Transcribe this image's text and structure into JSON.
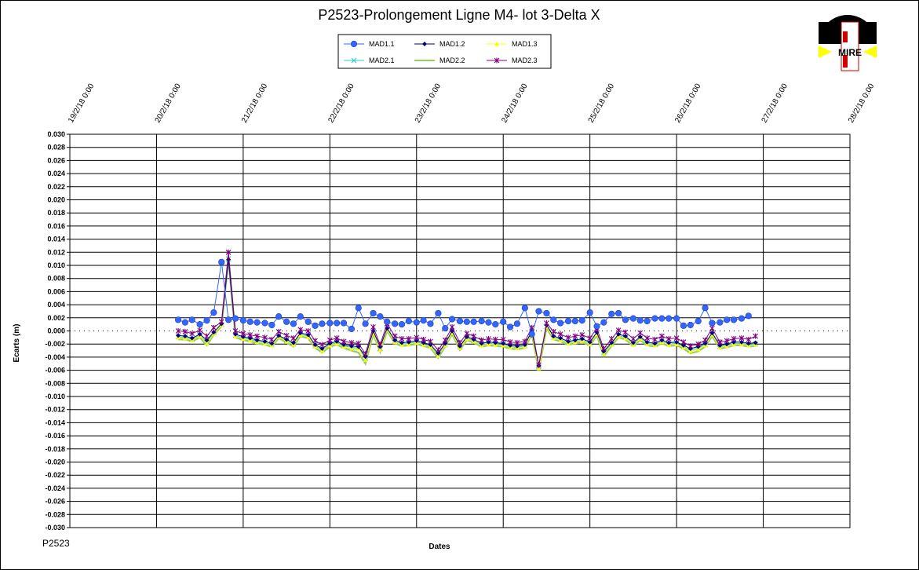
{
  "chart_data": {
    "type": "line",
    "title": "P2523-Prolongement  Ligne  M4- lot 3-Delta X",
    "xlabel": "Dates",
    "ylabel": "Ecarts (m)",
    "footer_label": "P2523",
    "logo_text": "MIRE",
    "ylim": [
      -0.03,
      0.03
    ],
    "ystep": 0.002,
    "grid": true,
    "legend_position": "top-center",
    "x_ticks": [
      "19/2/18 0:00",
      "20/2/18 0:00",
      "21/2/18 0:00",
      "22/2/18 0:00",
      "23/2/18 0:00",
      "24/2/18 0:00",
      "25/2/18 0:00",
      "26/2/18 0:00",
      "27/2/18 0:00",
      "28/2/18 0:00"
    ],
    "x": [
      1.25,
      1.33,
      1.41,
      1.5,
      1.58,
      1.66,
      1.75,
      1.83,
      1.91,
      2.0,
      2.08,
      2.16,
      2.25,
      2.33,
      2.41,
      2.5,
      2.58,
      2.66,
      2.75,
      2.83,
      2.91,
      3.0,
      3.08,
      3.16,
      3.25,
      3.33,
      3.41,
      3.5,
      3.58,
      3.66,
      3.75,
      3.83,
      3.91,
      4.0,
      4.08,
      4.16,
      4.25,
      4.33,
      4.41,
      4.5,
      4.58,
      4.66,
      4.75,
      4.83,
      4.91,
      5.0,
      5.08,
      5.16,
      5.25,
      5.33,
      5.41,
      5.5,
      5.58,
      5.66,
      5.75,
      5.83,
      5.91,
      6.0,
      6.08,
      6.16,
      6.25,
      6.33,
      6.41,
      6.5,
      6.58,
      6.66,
      6.75,
      6.83,
      6.91,
      7.0,
      7.08,
      7.16,
      7.25,
      7.33,
      7.41,
      7.5,
      7.58,
      7.66,
      7.75,
      7.83,
      7.91,
      8.0,
      8.08
    ],
    "series": [
      {
        "name": "MAD1.1",
        "color": "#3366ff",
        "marker": "circle",
        "values": [
          0.0017,
          0.0013,
          0.0017,
          0.001,
          0.0016,
          0.0028,
          0.0105,
          0.0017,
          0.0019,
          0.0016,
          0.0014,
          0.0013,
          0.0012,
          0.0009,
          0.0022,
          0.0014,
          0.0011,
          0.0022,
          0.0014,
          0.0008,
          0.0011,
          0.0012,
          0.0012,
          0.0012,
          0.0003,
          0.0035,
          0.0011,
          0.0027,
          0.0022,
          0.0014,
          0.0011,
          0.001,
          0.0015,
          0.0013,
          0.0016,
          0.0011,
          0.0027,
          0.0004,
          0.0018,
          0.0015,
          0.0014,
          0.0014,
          0.0015,
          0.0013,
          0.001,
          0.0014,
          0.0006,
          0.0011,
          0.0035,
          -0.0005,
          0.003,
          0.0027,
          0.0017,
          0.0012,
          0.0015,
          0.0015,
          0.0016,
          0.0028,
          0.0007,
          0.0013,
          0.0026,
          0.0027,
          0.0017,
          0.0019,
          0.0016,
          0.0015,
          0.0019,
          0.0019,
          0.0019,
          0.0019,
          0.0008,
          0.0009,
          0.0015,
          0.0035,
          0.0012,
          0.0013,
          0.0017,
          0.0017,
          0.0019,
          0.0023,
          null,
          null,
          null
        ]
      },
      {
        "name": "MAD1.2",
        "color": "#000080",
        "marker": "diamond",
        "values": [
          -0.0007,
          -0.0008,
          -0.0011,
          -0.0005,
          -0.0014,
          -0.0002,
          0.0011,
          0.0109,
          -0.0005,
          -0.0009,
          -0.0011,
          -0.0014,
          -0.0016,
          -0.0019,
          -0.0007,
          -0.0013,
          -0.0018,
          -0.0003,
          -0.0006,
          -0.0021,
          -0.0027,
          -0.0019,
          -0.0016,
          -0.0021,
          -0.0023,
          -0.0024,
          -0.0039,
          0.0,
          -0.0024,
          0.0004,
          -0.0014,
          -0.0018,
          -0.0017,
          -0.0015,
          -0.0018,
          -0.0021,
          -0.0034,
          -0.0019,
          0.0,
          -0.0023,
          -0.0009,
          -0.0013,
          -0.0019,
          -0.0017,
          -0.0018,
          -0.0019,
          -0.0022,
          -0.0023,
          -0.0021,
          0.0,
          -0.0053,
          0.0009,
          -0.0008,
          -0.0011,
          -0.0016,
          -0.0014,
          -0.0012,
          -0.0017,
          -0.0002,
          -0.0031,
          -0.0018,
          -0.0005,
          -0.0008,
          -0.0018,
          -0.0009,
          -0.0017,
          -0.0019,
          -0.0014,
          -0.0018,
          -0.0017,
          -0.0022,
          -0.0027,
          -0.0024,
          -0.0019,
          -0.0003,
          -0.0022,
          -0.002,
          -0.0017,
          -0.0017,
          -0.0019,
          -0.0018,
          null,
          null
        ]
      },
      {
        "name": "MAD1.3",
        "color": "#ffff00",
        "marker": "triangle",
        "values": [
          -0.001,
          -0.0011,
          -0.0014,
          -0.0008,
          -0.0019,
          -0.0004,
          0.0009,
          0.0112,
          -0.0008,
          -0.0012,
          -0.0014,
          -0.0017,
          -0.0019,
          -0.0022,
          -0.0009,
          -0.0016,
          -0.0021,
          -0.0006,
          -0.0009,
          -0.0024,
          -0.003,
          -0.0022,
          -0.0019,
          -0.0024,
          -0.0027,
          -0.0027,
          -0.0044,
          -0.0003,
          -0.0029,
          0.0002,
          -0.0017,
          -0.0021,
          -0.002,
          -0.0018,
          -0.0021,
          -0.0024,
          -0.0038,
          -0.0022,
          -0.0003,
          -0.0026,
          -0.0012,
          -0.0016,
          -0.0022,
          -0.002,
          -0.0021,
          -0.0022,
          -0.0025,
          -0.0026,
          -0.0024,
          -0.0003,
          -0.0057,
          0.0006,
          -0.0011,
          -0.0014,
          -0.0019,
          -0.0017,
          -0.0015,
          -0.002,
          -0.0005,
          -0.0035,
          -0.0021,
          -0.0008,
          -0.0011,
          -0.0021,
          -0.0012,
          -0.002,
          -0.0022,
          -0.0017,
          -0.0021,
          -0.002,
          -0.0025,
          -0.0031,
          -0.0028,
          -0.0022,
          -0.0006,
          -0.0025,
          -0.0023,
          -0.002,
          -0.002,
          -0.0022,
          -0.0021,
          null,
          null
        ]
      },
      {
        "name": "MAD2.1",
        "color": "#33cccc",
        "marker": "x",
        "values": [
          -0.0009,
          -0.001,
          -0.0013,
          -0.0007,
          -0.0017,
          -0.0003,
          0.001,
          0.011,
          -0.0007,
          -0.0011,
          -0.0013,
          -0.0016,
          -0.0018,
          -0.0021,
          -0.0008,
          -0.0015,
          -0.002,
          -0.0005,
          -0.0008,
          -0.0023,
          -0.0029,
          -0.0021,
          -0.0018,
          -0.0023,
          -0.0025,
          -0.0026,
          -0.0042,
          -0.0002,
          -0.0027,
          0.0003,
          -0.0016,
          -0.002,
          -0.0019,
          -0.0017,
          -0.002,
          -0.0023,
          -0.0036,
          -0.0021,
          -0.0002,
          -0.0025,
          -0.0011,
          -0.0015,
          -0.0021,
          -0.0019,
          -0.002,
          -0.0021,
          -0.0024,
          -0.0025,
          -0.0023,
          -0.0002,
          -0.0055,
          0.0007,
          -0.001,
          -0.0013,
          -0.0018,
          -0.0016,
          -0.0014,
          -0.0019,
          -0.0004,
          -0.0033,
          -0.002,
          -0.0007,
          -0.001,
          -0.002,
          -0.0011,
          -0.0019,
          -0.0021,
          -0.0016,
          -0.002,
          -0.0019,
          -0.0024,
          -0.003,
          -0.0026,
          -0.0021,
          -0.0005,
          -0.0024,
          -0.0022,
          -0.0019,
          -0.0019,
          -0.0021,
          -0.002,
          null,
          null
        ]
      },
      {
        "name": "MAD2.2",
        "color": "#99cc66",
        "marker": "none",
        "values": [
          -0.0013,
          -0.0013,
          -0.0016,
          -0.001,
          -0.0022,
          -0.0006,
          0.0007,
          0.0108,
          -0.001,
          -0.0014,
          -0.0016,
          -0.0019,
          -0.0021,
          -0.0024,
          -0.0011,
          -0.0018,
          -0.0024,
          -0.0008,
          -0.0011,
          -0.0026,
          -0.0033,
          -0.0024,
          -0.0021,
          -0.0026,
          -0.003,
          -0.0033,
          -0.005,
          -0.0005,
          -0.0032,
          0.0,
          -0.0019,
          -0.0023,
          -0.0022,
          -0.002,
          -0.0023,
          -0.0026,
          -0.0041,
          -0.0024,
          -0.0005,
          -0.0029,
          -0.0014,
          -0.0018,
          -0.0024,
          -0.0022,
          -0.0023,
          -0.0024,
          -0.0027,
          -0.0028,
          -0.0026,
          -0.0005,
          -0.006,
          0.0004,
          -0.0013,
          -0.0016,
          -0.0021,
          -0.0019,
          -0.0017,
          -0.0022,
          -0.0007,
          -0.0038,
          -0.0023,
          -0.001,
          -0.0013,
          -0.0023,
          -0.0014,
          -0.0022,
          -0.0024,
          -0.0019,
          -0.0023,
          -0.0022,
          -0.0027,
          -0.0034,
          -0.0031,
          -0.0024,
          -0.0008,
          -0.0027,
          -0.0025,
          -0.0022,
          -0.0022,
          -0.0024,
          -0.0023,
          null,
          null
        ]
      },
      {
        "name": "MAD2.3",
        "color": "#800080",
        "marker": "star",
        "values": [
          0.0,
          -0.0001,
          -0.0004,
          0.0001,
          -0.0008,
          0.0005,
          0.0014,
          0.012,
          0.0,
          -0.0004,
          -0.0006,
          -0.0008,
          -0.001,
          -0.0013,
          -0.0001,
          -0.0007,
          -0.0011,
          0.0002,
          0.0,
          -0.0015,
          -0.0021,
          -0.0014,
          -0.0011,
          -0.0016,
          -0.0018,
          -0.0019,
          -0.0035,
          0.0006,
          -0.0021,
          0.0011,
          -0.0008,
          -0.0012,
          -0.0012,
          -0.001,
          -0.0013,
          -0.0016,
          -0.0029,
          -0.0014,
          0.0006,
          -0.0018,
          -0.0004,
          -0.0008,
          -0.0014,
          -0.0012,
          -0.0013,
          -0.0013,
          -0.0017,
          -0.0018,
          -0.0016,
          0.0005,
          -0.0052,
          0.0012,
          -0.0001,
          -0.0005,
          -0.001,
          -0.0008,
          -0.0006,
          -0.0011,
          0.0004,
          -0.0027,
          -0.0012,
          0.0001,
          -0.0002,
          -0.0012,
          -0.0003,
          -0.0011,
          -0.0013,
          -0.0008,
          -0.0012,
          -0.0011,
          -0.0017,
          -0.0023,
          -0.002,
          -0.0014,
          0.0004,
          -0.0017,
          -0.0015,
          -0.0012,
          -0.0011,
          -0.0013,
          -0.0008,
          null,
          null
        ]
      }
    ]
  }
}
